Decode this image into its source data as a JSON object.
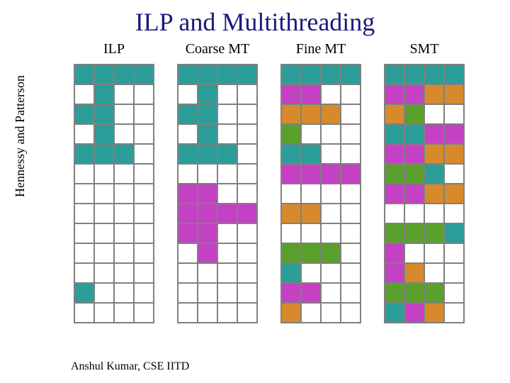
{
  "title": "ILP and Multithreading",
  "ylabel": "Hennessy and Patterson",
  "footer": "Anshul Kumar, CSE IITD",
  "cell_size": 28,
  "rows": 13,
  "cols": 4,
  "colors": {
    "0": "#ffffff",
    "1": "#2b9e99",
    "2": "#c441c4",
    "3": "#d68a2b",
    "4": "#5aa02c"
  },
  "grids": [
    {
      "label": "ILP",
      "cells": [
        [
          1,
          1,
          1,
          1
        ],
        [
          0,
          1,
          0,
          0
        ],
        [
          1,
          1,
          0,
          0
        ],
        [
          0,
          1,
          0,
          0
        ],
        [
          1,
          1,
          1,
          0
        ],
        [
          0,
          0,
          0,
          0
        ],
        [
          0,
          0,
          0,
          0
        ],
        [
          0,
          0,
          0,
          0
        ],
        [
          0,
          0,
          0,
          0
        ],
        [
          0,
          0,
          0,
          0
        ],
        [
          0,
          0,
          0,
          0
        ],
        [
          1,
          0,
          0,
          0
        ],
        [
          0,
          0,
          0,
          0
        ]
      ]
    },
    {
      "label": "Coarse MT",
      "cells": [
        [
          1,
          1,
          1,
          1
        ],
        [
          0,
          1,
          0,
          0
        ],
        [
          1,
          1,
          0,
          0
        ],
        [
          0,
          1,
          0,
          0
        ],
        [
          1,
          1,
          1,
          0
        ],
        [
          0,
          0,
          0,
          0
        ],
        [
          2,
          2,
          0,
          0
        ],
        [
          2,
          2,
          2,
          2
        ],
        [
          2,
          2,
          0,
          0
        ],
        [
          0,
          2,
          0,
          0
        ],
        [
          0,
          0,
          0,
          0
        ],
        [
          0,
          0,
          0,
          0
        ],
        [
          0,
          0,
          0,
          0
        ]
      ]
    },
    {
      "label": "Fine MT",
      "cells": [
        [
          1,
          1,
          1,
          1
        ],
        [
          2,
          2,
          0,
          0
        ],
        [
          3,
          3,
          3,
          0
        ],
        [
          4,
          0,
          0,
          0
        ],
        [
          1,
          1,
          0,
          0
        ],
        [
          2,
          2,
          2,
          2
        ],
        [
          0,
          0,
          0,
          0
        ],
        [
          3,
          3,
          0,
          0
        ],
        [
          0,
          0,
          0,
          0
        ],
        [
          4,
          4,
          4,
          0
        ],
        [
          1,
          0,
          0,
          0
        ],
        [
          2,
          2,
          0,
          0
        ],
        [
          3,
          0,
          0,
          0
        ]
      ]
    },
    {
      "label": "SMT",
      "cells": [
        [
          1,
          1,
          1,
          1
        ],
        [
          2,
          2,
          3,
          3
        ],
        [
          3,
          4,
          0,
          0
        ],
        [
          1,
          1,
          2,
          2
        ],
        [
          2,
          2,
          3,
          3
        ],
        [
          4,
          4,
          1,
          0
        ],
        [
          2,
          2,
          3,
          3
        ],
        [
          0,
          0,
          0,
          0
        ],
        [
          4,
          4,
          4,
          1
        ],
        [
          2,
          0,
          0,
          0
        ],
        [
          2,
          3,
          0,
          0
        ],
        [
          4,
          4,
          4,
          0
        ],
        [
          1,
          2,
          3,
          0
        ]
      ]
    }
  ]
}
